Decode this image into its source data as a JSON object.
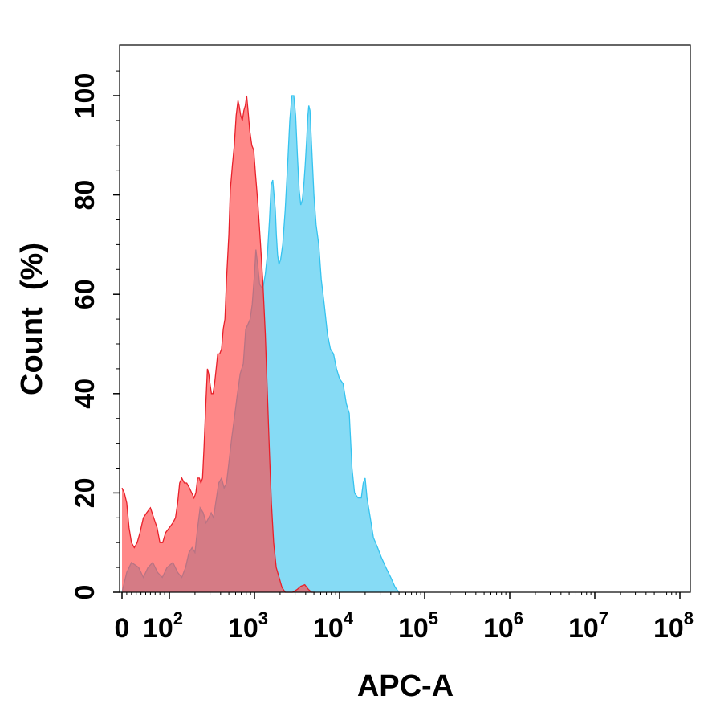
{
  "chart_data": {
    "type": "area",
    "title": "",
    "xlabel": "APC-A",
    "ylabel": "Count  (%)",
    "x_scale": "biexponential (linear near 0, log above ~100)",
    "x_ticks": [
      {
        "value": 0,
        "base": "0",
        "exp": ""
      },
      {
        "value": 100,
        "base": "10",
        "exp": "2"
      },
      {
        "value": 1000,
        "base": "10",
        "exp": "3"
      },
      {
        "value": 10000,
        "base": "10",
        "exp": "4"
      },
      {
        "value": 100000,
        "base": "10",
        "exp": "5"
      },
      {
        "value": 1000000,
        "base": "10",
        "exp": "6"
      },
      {
        "value": 10000000,
        "base": "10",
        "exp": "7"
      },
      {
        "value": 100000000,
        "base": "10",
        "exp": "8"
      }
    ],
    "y_ticks": [
      0,
      20,
      40,
      60,
      80,
      100
    ],
    "ylim": [
      0,
      110
    ],
    "grid": false,
    "legend": "none",
    "series": [
      {
        "color": "#35c3ef",
        "fill": "#35c3ef",
        "fill_opacity": 0.6,
        "points": [
          [
            0,
            0
          ],
          [
            10,
            4
          ],
          [
            20,
            6
          ],
          [
            35,
            5
          ],
          [
            45,
            3
          ],
          [
            55,
            5
          ],
          [
            65,
            6
          ],
          [
            75,
            4
          ],
          [
            85,
            3
          ],
          [
            95,
            5
          ],
          [
            110,
            6
          ],
          [
            125,
            4
          ],
          [
            140,
            3
          ],
          [
            155,
            5
          ],
          [
            170,
            8
          ],
          [
            185,
            9
          ],
          [
            200,
            8
          ],
          [
            215,
            13
          ],
          [
            230,
            17
          ],
          [
            250,
            16
          ],
          [
            270,
            14
          ],
          [
            290,
            15
          ],
          [
            310,
            16
          ],
          [
            330,
            15
          ],
          [
            350,
            18
          ],
          [
            380,
            22
          ],
          [
            410,
            23
          ],
          [
            440,
            21
          ],
          [
            470,
            22
          ],
          [
            500,
            26
          ],
          [
            540,
            31
          ],
          [
            580,
            35
          ],
          [
            620,
            39
          ],
          [
            680,
            44
          ],
          [
            740,
            46
          ],
          [
            790,
            53
          ],
          [
            840,
            54
          ],
          [
            890,
            55
          ],
          [
            940,
            58
          ],
          [
            1000,
            64
          ],
          [
            1040,
            69
          ],
          [
            1090,
            66
          ],
          [
            1150,
            62
          ],
          [
            1250,
            61
          ],
          [
            1340,
            64
          ],
          [
            1420,
            68
          ],
          [
            1500,
            75
          ],
          [
            1570,
            82
          ],
          [
            1640,
            83
          ],
          [
            1700,
            80
          ],
          [
            1760,
            77
          ],
          [
            1810,
            72
          ],
          [
            1870,
            68
          ],
          [
            1940,
            66
          ],
          [
            2030,
            67
          ],
          [
            2150,
            70
          ],
          [
            2300,
            77
          ],
          [
            2450,
            86
          ],
          [
            2600,
            95
          ],
          [
            2750,
            100
          ],
          [
            2900,
            100
          ],
          [
            3050,
            96
          ],
          [
            3200,
            88
          ],
          [
            3350,
            81
          ],
          [
            3500,
            78
          ],
          [
            3650,
            79
          ],
          [
            3800,
            82
          ],
          [
            3950,
            86
          ],
          [
            4100,
            91
          ],
          [
            4250,
            96
          ],
          [
            4350,
            98
          ],
          [
            4500,
            97
          ],
          [
            4700,
            90
          ],
          [
            5000,
            80
          ],
          [
            5300,
            74
          ],
          [
            5700,
            70
          ],
          [
            6100,
            63
          ],
          [
            6600,
            58
          ],
          [
            7200,
            52
          ],
          [
            7800,
            49
          ],
          [
            8500,
            48
          ],
          [
            9200,
            45
          ],
          [
            10000,
            43
          ],
          [
            11000,
            42
          ],
          [
            12000,
            38
          ],
          [
            13000,
            36
          ],
          [
            14000,
            25
          ],
          [
            15000,
            20
          ],
          [
            16500,
            19
          ],
          [
            18000,
            19
          ],
          [
            19000,
            22
          ],
          [
            20000,
            23
          ],
          [
            21000,
            19
          ],
          [
            23000,
            15
          ],
          [
            25000,
            11
          ],
          [
            28000,
            9
          ],
          [
            31000,
            7
          ],
          [
            35000,
            5
          ],
          [
            40000,
            3
          ],
          [
            45000,
            1
          ],
          [
            50000,
            0
          ]
        ]
      },
      {
        "color": "#e8202a",
        "fill": "#ff4848",
        "fill_opacity": 0.65,
        "points": [
          [
            0,
            21
          ],
          [
            5,
            20
          ],
          [
            10,
            18
          ],
          [
            15,
            13
          ],
          [
            20,
            10
          ],
          [
            26,
            9
          ],
          [
            32,
            10
          ],
          [
            38,
            12
          ],
          [
            45,
            15
          ],
          [
            52,
            16
          ],
          [
            60,
            17
          ],
          [
            67,
            15
          ],
          [
            74,
            13
          ],
          [
            80,
            10
          ],
          [
            86,
            10
          ],
          [
            92,
            12
          ],
          [
            100,
            13
          ],
          [
            110,
            14
          ],
          [
            118,
            15
          ],
          [
            125,
            18
          ],
          [
            132,
            22
          ],
          [
            140,
            23
          ],
          [
            150,
            22
          ],
          [
            160,
            22
          ],
          [
            172,
            21
          ],
          [
            183,
            20
          ],
          [
            195,
            19
          ],
          [
            205,
            20
          ],
          [
            215,
            23
          ],
          [
            225,
            23
          ],
          [
            235,
            22
          ],
          [
            245,
            23
          ],
          [
            255,
            29
          ],
          [
            268,
            38
          ],
          [
            280,
            45
          ],
          [
            290,
            44
          ],
          [
            300,
            42
          ],
          [
            312,
            40
          ],
          [
            325,
            40
          ],
          [
            340,
            42
          ],
          [
            355,
            45
          ],
          [
            370,
            48
          ],
          [
            390,
            48
          ],
          [
            410,
            49
          ],
          [
            430,
            53
          ],
          [
            450,
            55
          ],
          [
            470,
            63
          ],
          [
            500,
            72
          ],
          [
            520,
            81
          ],
          [
            550,
            86
          ],
          [
            580,
            90
          ],
          [
            610,
            96
          ],
          [
            640,
            99
          ],
          [
            660,
            98
          ],
          [
            690,
            96
          ],
          [
            720,
            95
          ],
          [
            750,
            97
          ],
          [
            780,
            98
          ],
          [
            810,
            100
          ],
          [
            840,
            97
          ],
          [
            880,
            93
          ],
          [
            930,
            90
          ],
          [
            980,
            89
          ],
          [
            1030,
            84
          ],
          [
            1100,
            78
          ],
          [
            1180,
            70
          ],
          [
            1260,
            62
          ],
          [
            1340,
            52
          ],
          [
            1420,
            40
          ],
          [
            1500,
            28
          ],
          [
            1580,
            18
          ],
          [
            1680,
            10
          ],
          [
            1800,
            5
          ],
          [
            1950,
            3
          ],
          [
            2100,
            1
          ],
          [
            2300,
            0
          ],
          [
            2400,
            0
          ],
          [
            2800,
            0
          ],
          [
            3200,
            0.6
          ],
          [
            3500,
            1.2
          ],
          [
            3900,
            1.5
          ],
          [
            4300,
            0.6
          ],
          [
            4700,
            0
          ],
          [
            5200,
            0
          ]
        ]
      }
    ]
  }
}
